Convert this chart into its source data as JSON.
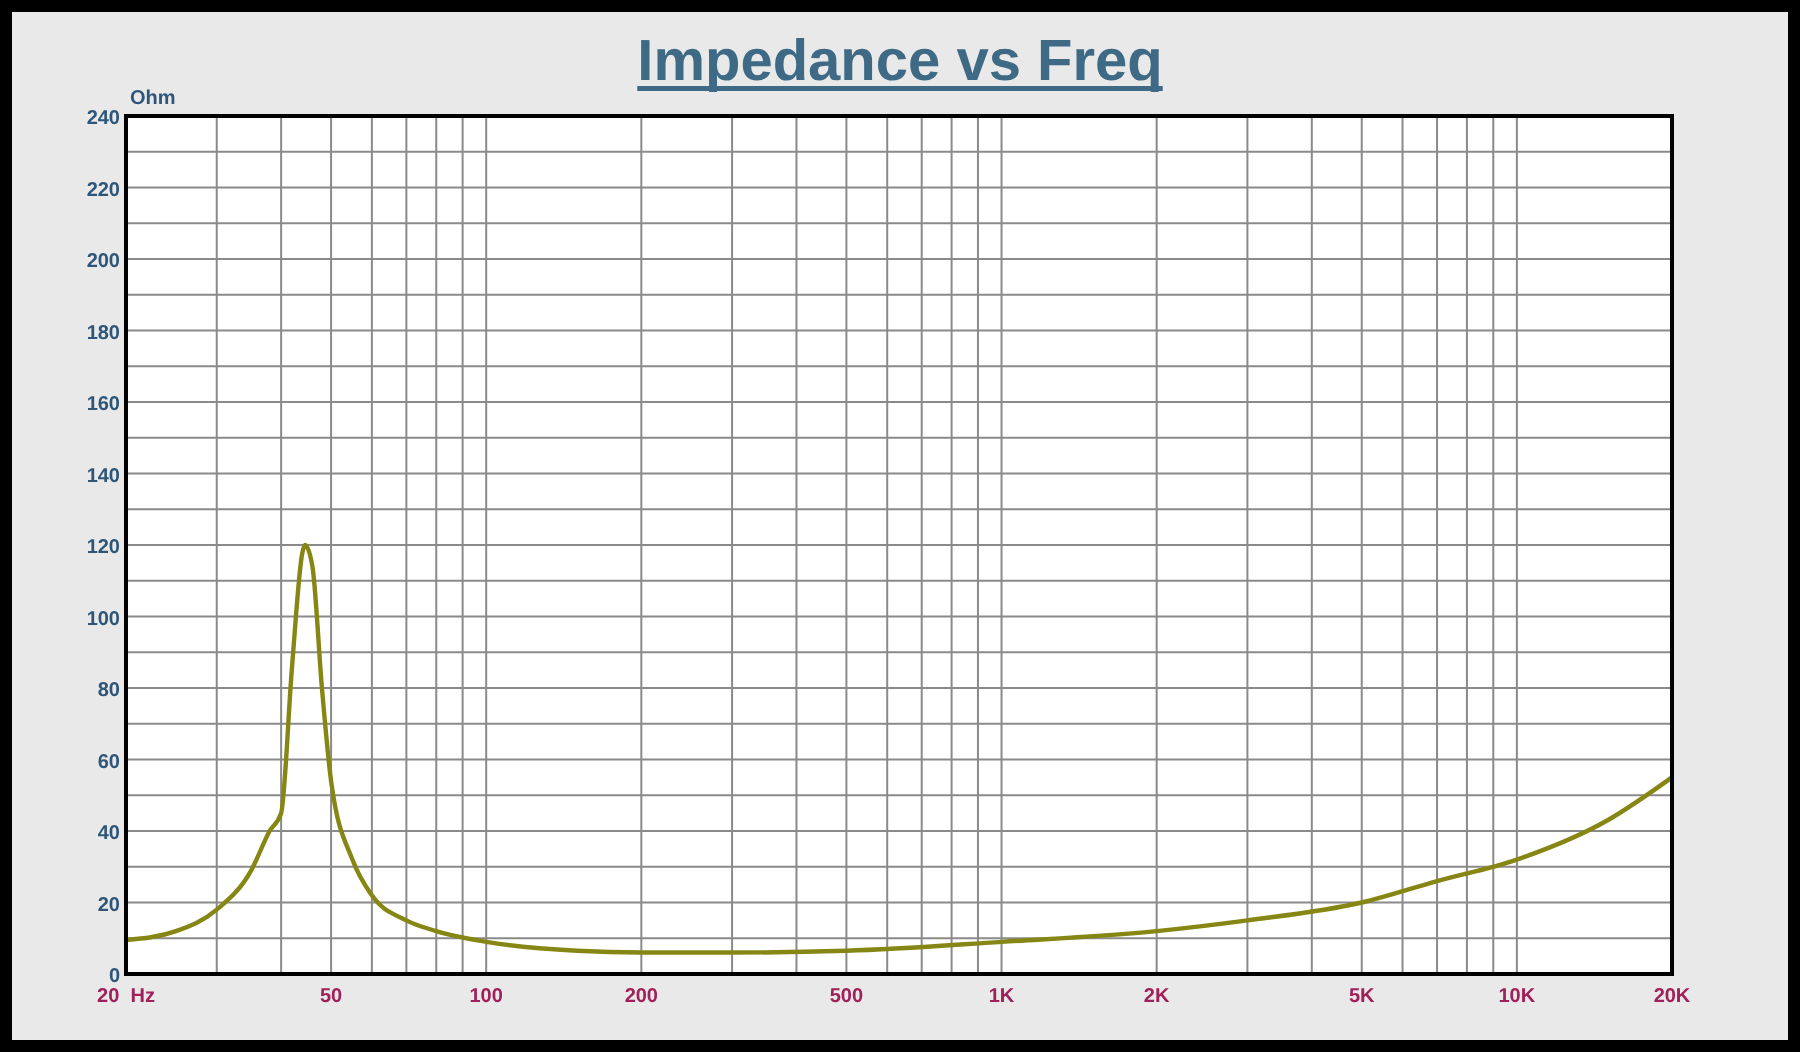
{
  "chart_data": {
    "type": "line",
    "title": "Impedance vs Freq",
    "ylabel": "Ohm",
    "log": "x",
    "xlim": [
      20,
      20000
    ],
    "ylim": [
      0,
      240
    ],
    "xticks": [
      {
        "value": 20,
        "label": "20  Hz"
      },
      {
        "value": 30,
        "label": null
      },
      {
        "value": 40,
        "label": null
      },
      50,
      {
        "value": 60,
        "label": null
      },
      {
        "value": 70,
        "label": null
      },
      {
        "value": 80,
        "label": null
      },
      {
        "value": 90,
        "label": null
      },
      100,
      200,
      {
        "value": 300,
        "label": null
      },
      {
        "value": 400,
        "label": null
      },
      500,
      {
        "value": 600,
        "label": null
      },
      {
        "value": 700,
        "label": null
      },
      {
        "value": 800,
        "label": null
      },
      {
        "value": 900,
        "label": null
      },
      {
        "value": 1000,
        "label": "1K"
      },
      {
        "value": 2000,
        "label": "2K"
      },
      {
        "value": 3000,
        "label": null
      },
      {
        "value": 4000,
        "label": null
      },
      {
        "value": 5000,
        "label": "5K"
      },
      {
        "value": 6000,
        "label": null
      },
      {
        "value": 7000,
        "label": null
      },
      {
        "value": 8000,
        "label": null
      },
      {
        "value": 9000,
        "label": null
      },
      {
        "value": 10000,
        "label": "10K"
      },
      {
        "value": 20000,
        "label": "20K"
      }
    ],
    "yticks": [
      0,
      {
        "value": 10,
        "label": null
      },
      20,
      {
        "value": 30,
        "label": null
      },
      40,
      {
        "value": 50,
        "label": null
      },
      60,
      {
        "value": 70,
        "label": null
      },
      80,
      {
        "value": 90,
        "label": null
      },
      100,
      {
        "value": 110,
        "label": null
      },
      120,
      {
        "value": 130,
        "label": null
      },
      140,
      {
        "value": 150,
        "label": null
      },
      160,
      {
        "value": 170,
        "label": null
      },
      180,
      {
        "value": 190,
        "label": null
      },
      200,
      {
        "value": 210,
        "label": null
      },
      220,
      {
        "value": 230,
        "label": null
      },
      240
    ],
    "grid": true,
    "marker": "none",
    "line_style": "solid",
    "series": [
      {
        "color": "#868614",
        "x": [
          20,
          25,
          30,
          35,
          38,
          40,
          42,
          44,
          44.5,
          46,
          48,
          50,
          55,
          60,
          70,
          80,
          100,
          150,
          200,
          300,
          500,
          1000,
          2000,
          3000,
          5000,
          7000,
          10000,
          15000,
          20000
        ],
        "values": [
          9.5,
          12,
          18,
          29,
          40,
          45,
          86,
          118,
          120,
          114,
          80,
          54,
          32,
          22,
          15,
          12,
          9,
          6.5,
          6,
          6,
          6.5,
          9,
          12,
          15,
          20,
          26,
          32,
          43,
          55
        ]
      }
    ]
  }
}
